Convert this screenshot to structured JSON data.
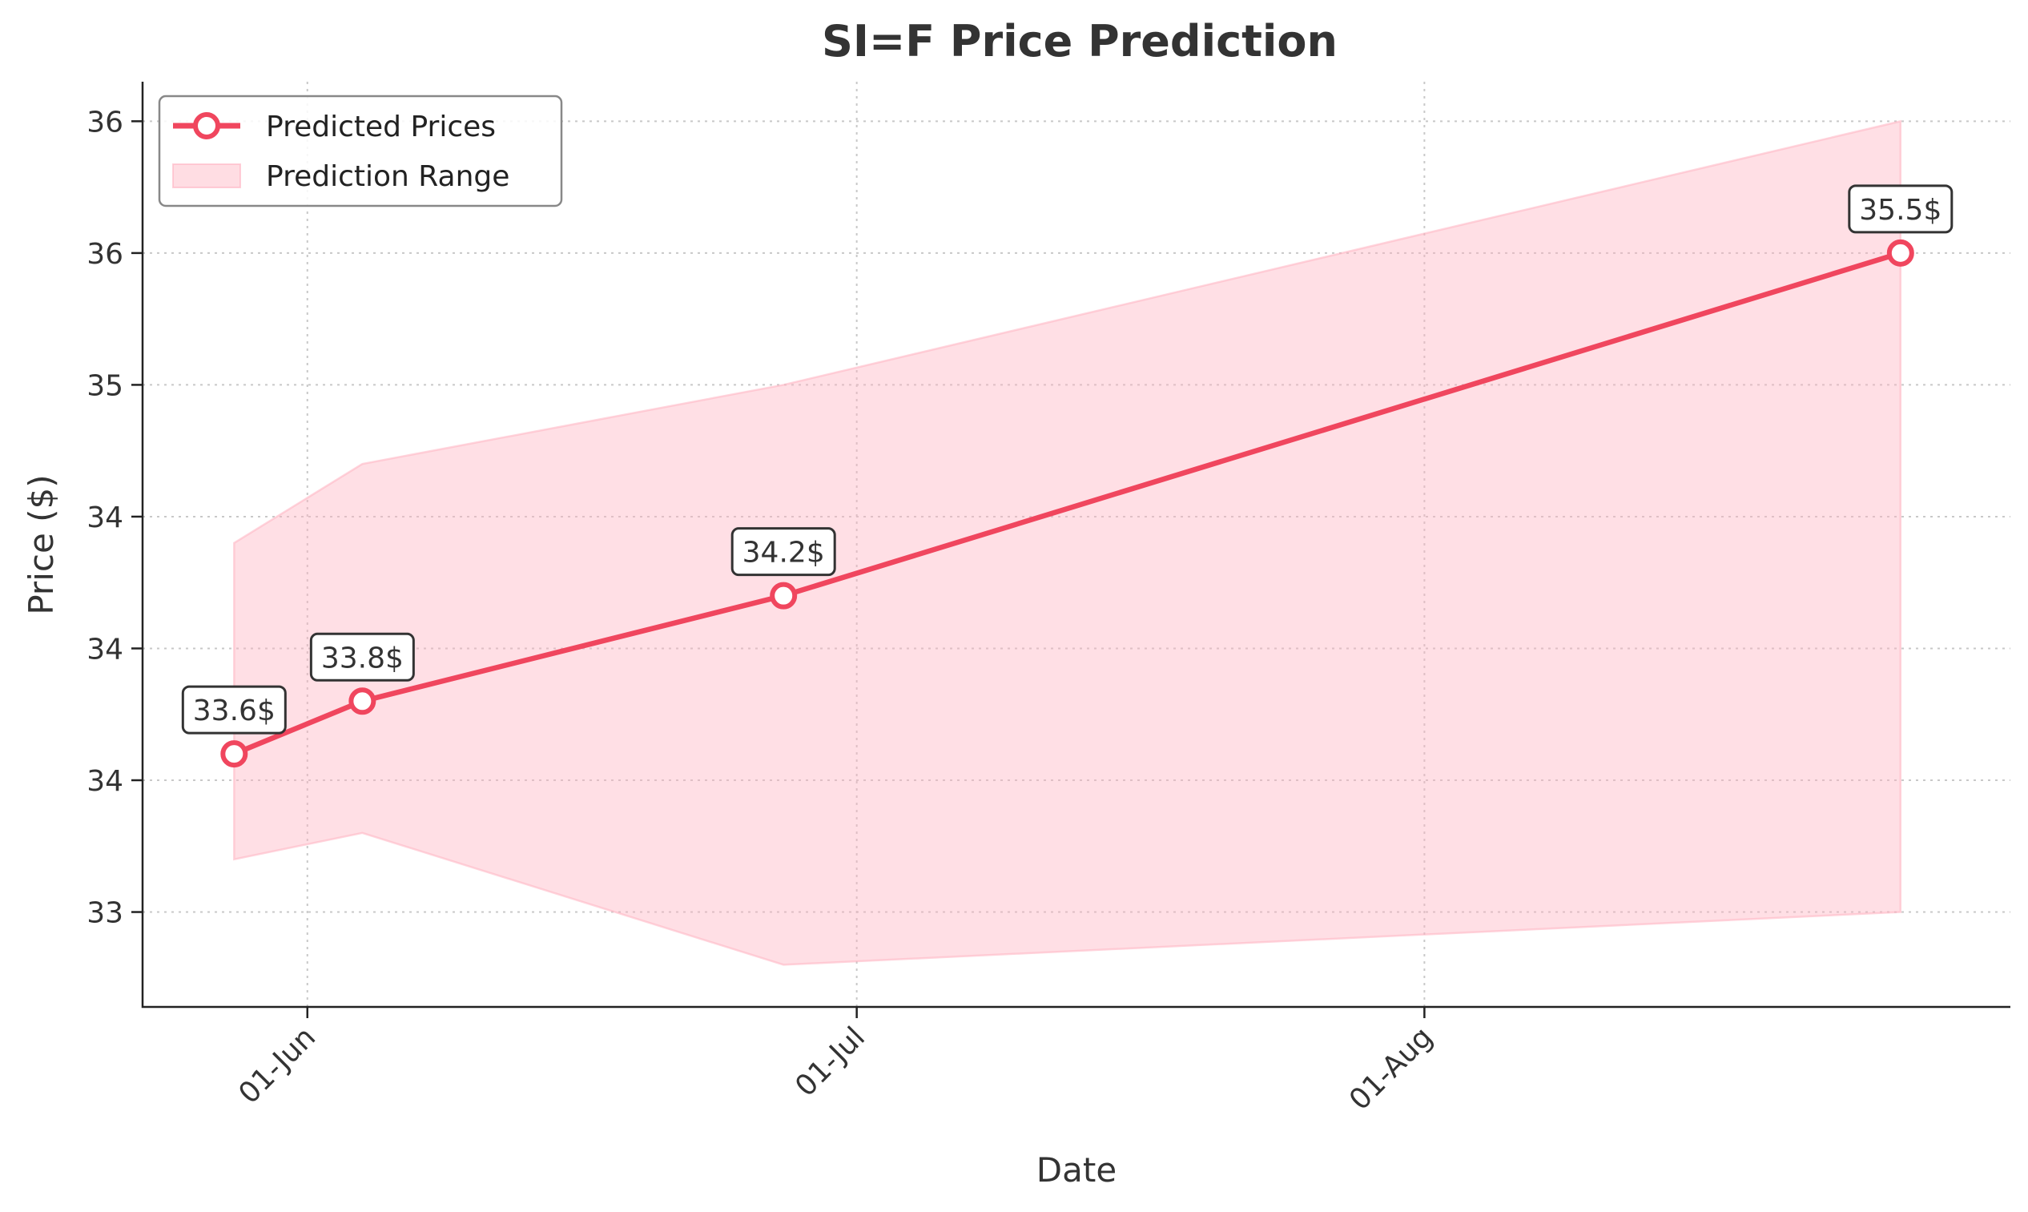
{
  "chart_data": {
    "type": "line",
    "title": "SI=F Price Prediction",
    "xlabel": "Date",
    "ylabel": "Price ($)",
    "x_ticks": [
      {
        "date": "2024-06-01",
        "label": "01-Jun"
      },
      {
        "date": "2024-07-01",
        "label": "01-Jul"
      },
      {
        "date": "2024-08-01",
        "label": "01-Aug"
      }
    ],
    "y_ticks": [
      {
        "value": 33.0,
        "label": "33"
      },
      {
        "value": 33.5,
        "label": "34"
      },
      {
        "value": 34.0,
        "label": "34"
      },
      {
        "value": 34.5,
        "label": "34"
      },
      {
        "value": 35.0,
        "label": "35"
      },
      {
        "value": 35.5,
        "label": "36"
      },
      {
        "value": 36.0,
        "label": "36"
      }
    ],
    "xlim": [
      "2024-05-23",
      "2024-09-02"
    ],
    "ylim": [
      32.64,
      36.15
    ],
    "grid": true,
    "legend": {
      "position": "top-left",
      "entries": [
        {
          "label": "Predicted Prices",
          "kind": "line-marker"
        },
        {
          "label": "Prediction Range",
          "kind": "area"
        }
      ]
    },
    "series": [
      {
        "name": "Predicted Prices",
        "color": "#f0465e",
        "x": [
          "2024-05-28",
          "2024-06-04",
          "2024-06-27",
          "2024-08-27"
        ],
        "values": [
          33.6,
          33.8,
          34.2,
          35.5
        ],
        "labels": [
          "33.6$",
          "33.8$",
          "34.2$",
          "35.5$"
        ]
      }
    ],
    "range": {
      "name": "Prediction Range",
      "color": "#ffb3c1",
      "x": [
        "2024-05-28",
        "2024-06-04",
        "2024-06-27",
        "2024-08-27"
      ],
      "upper": [
        34.4,
        34.7,
        35.0,
        36.0
      ],
      "lower": [
        33.2,
        33.3,
        32.8,
        33.0
      ]
    }
  }
}
